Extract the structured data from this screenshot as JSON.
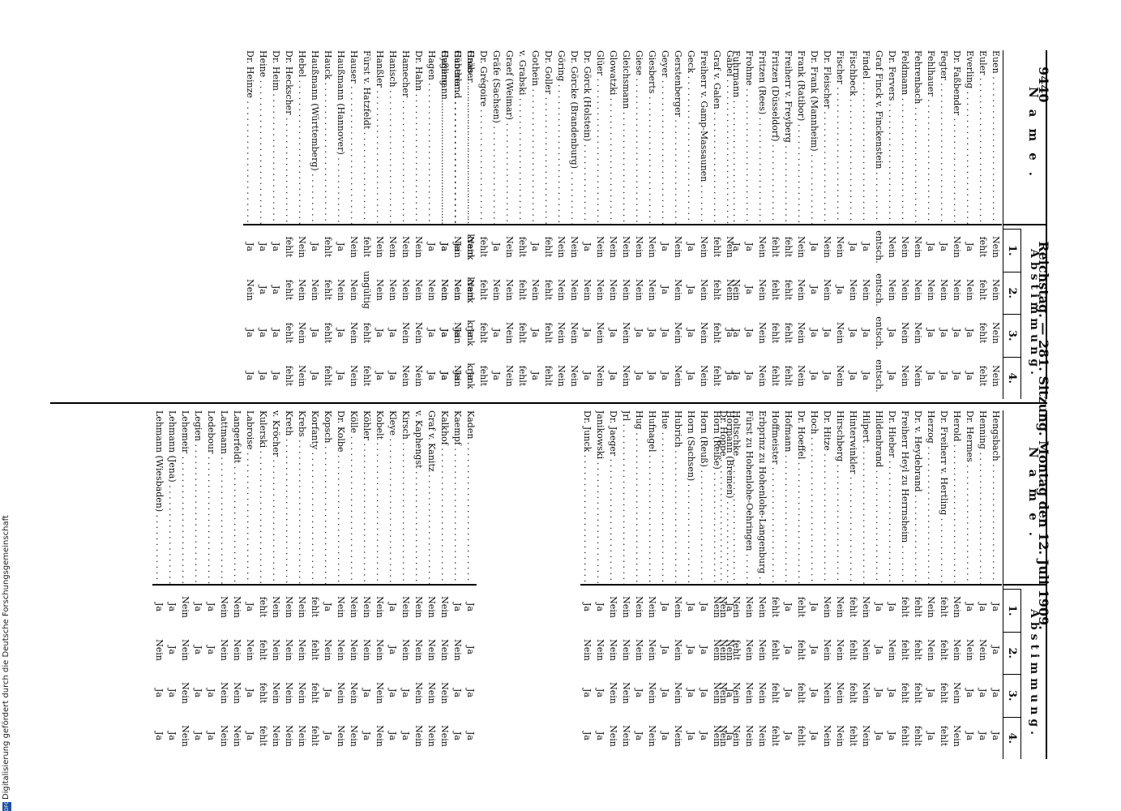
{
  "header": {
    "page_number": "9440",
    "title": "Reichstag. — 281. Sitzung. Montag den 12. Juli 1909."
  },
  "table_header": {
    "name_label": "Name.",
    "vote_group_label": "Abstimmung.",
    "cols": [
      "1.",
      "2.",
      "3.",
      "4."
    ]
  },
  "footer": {
    "text": "Digitalisierung gefördert durch die Deutsche Forschungsgemeinschaft",
    "logo": "DFG"
  },
  "left_table": {
    "block1": [
      {
        "name": "Euen",
        "votes": [
          "Nein",
          "Nein",
          "Nein",
          "Nein"
        ]
      },
      {
        "name": "Euler",
        "votes": [
          "fehlt",
          "fehlt",
          "fehlt",
          "fehlt"
        ]
      },
      {
        "name": "Everling",
        "votes": [
          "Ja",
          "Nein",
          "Ja",
          "Ja"
        ]
      },
      {
        "name": "Dr. Faßbender",
        "votes": [
          "Nein",
          "Nein",
          "Ja",
          "Ja"
        ]
      },
      {
        "name": "Fegter",
        "votes": [
          "Ja",
          "Nein",
          "Ja",
          "Ja"
        ]
      },
      {
        "name": "Fehlhauer",
        "votes": [
          "Ja",
          "Nein",
          "Ja",
          "Ja"
        ]
      },
      {
        "name": "Fehrenbach",
        "votes": [
          "Nein",
          "Nein",
          "Nein",
          "Nein"
        ]
      },
      {
        "name": "Feldmann",
        "votes": [
          "Nein",
          "Nein",
          "Nein",
          "Nein"
        ]
      },
      {
        "name": "Dr. Fervers",
        "votes": [
          "Nein",
          "Nein",
          "Ja",
          "Ja"
        ]
      },
      {
        "name": "Graf Finck v. Finckenstein",
        "votes": [
          "entsch.",
          "entsch.",
          "entsch.",
          "entsch."
        ]
      },
      {
        "name": "Findel",
        "votes": [
          "Ja",
          "Nein",
          "Ja",
          "Ja"
        ]
      },
      {
        "name": "Fischbeck",
        "votes": [
          "Ja",
          "Nein",
          "Ja",
          "Ja"
        ]
      },
      {
        "name": "Fischer",
        "votes": [
          "Nein",
          "Ja",
          "Nein",
          "Nein"
        ]
      },
      {
        "name": "Dr. Fleischer",
        "votes": [
          "Nein",
          "Nein",
          "Ja",
          "Ja"
        ]
      },
      {
        "name": "Dr. Frank (Mannheim)",
        "votes": [
          "Ja",
          "Ja",
          "Ja",
          "Ja"
        ]
      },
      {
        "name": "Frank (Ratibor)",
        "votes": [
          "Nein",
          "Nein",
          "Nein",
          "Nein"
        ]
      },
      {
        "name": "Freiherr v. Freyberg",
        "votes": [
          "fehlt",
          "fehlt",
          "fehlt",
          "fehlt"
        ]
      },
      {
        "name": "Fritzen (Düsseldorf)",
        "votes": [
          "fehlt",
          "fehlt",
          "fehlt",
          "fehlt"
        ]
      },
      {
        "name": "Fritzen (Rees)",
        "votes": [
          "Nein",
          "Nein",
          "Nein",
          "Nein"
        ]
      },
      {
        "name": "Frohme",
        "votes": [
          "Ja",
          "Ja",
          "Ja",
          "Ja"
        ]
      },
      {
        "name": "Fuhrmann",
        "votes": [
          "Ja",
          "Nein",
          "Ja",
          "Ja"
        ]
      }
    ],
    "block2": [
      {
        "name": "Gäbel",
        "votes": [
          "Nein",
          "Nein",
          "Ja",
          "Ja"
        ]
      },
      {
        "name": "Graf v. Galen",
        "votes": [
          "fehlt",
          "fehlt",
          "fehlt",
          "fehlt"
        ]
      },
      {
        "name": "Freiherr v. Gamp-Massaunen",
        "votes": [
          "Nein",
          "Nein",
          "Nein",
          "Nein"
        ]
      },
      {
        "name": "Geck",
        "votes": [
          "Ja",
          "Ja",
          "Ja",
          "Ja"
        ]
      },
      {
        "name": "Gerstenberger",
        "votes": [
          "Nein",
          "Nein",
          "Nein",
          "Nein"
        ]
      },
      {
        "name": "Geyer",
        "votes": [
          "Ja",
          "Ja",
          "Ja",
          "Ja"
        ]
      },
      {
        "name": "Giesberts",
        "votes": [
          "Nein",
          "Nein",
          "Ja",
          "Ja"
        ]
      },
      {
        "name": "Giese",
        "votes": [
          "Nein",
          "Nein",
          "Ja",
          "Ja"
        ]
      },
      {
        "name": "Gleichsmann",
        "votes": [
          "Nein",
          "Nein",
          "Nein",
          "Nein"
        ]
      },
      {
        "name": "Glowatzki",
        "votes": [
          "Nein",
          "Nein",
          "Ja",
          "Ja"
        ]
      },
      {
        "name": "Glüer",
        "votes": [
          "Nein",
          "Nein",
          "Nein",
          "Nein"
        ]
      },
      {
        "name": "Dr. Görck (Holstein)",
        "votes": [
          "Ja",
          "Nein",
          "Ja",
          "Ja"
        ]
      },
      {
        "name": "Dr. Görcke (Brandenburg)",
        "votes": [
          "Nein",
          "Nein",
          "Nein",
          "Nein"
        ]
      },
      {
        "name": "Göring",
        "votes": [
          "Nein",
          "Nein",
          "Nein",
          "Nein"
        ]
      },
      {
        "name": "Dr. Goller",
        "votes": [
          "fehlt",
          "fehlt",
          "fehlt",
          "fehlt"
        ]
      },
      {
        "name": "Gothein",
        "votes": [
          "Ja",
          "Nein",
          "Ja",
          "Ja"
        ]
      },
      {
        "name": "v. Grabski",
        "votes": [
          "fehlt",
          "fehlt",
          "fehlt",
          "fehlt"
        ]
      },
      {
        "name": "Graef (Weimar)",
        "votes": [
          "Nein",
          "Nein",
          "Nein",
          "Nein"
        ]
      },
      {
        "name": "Gräfe (Sachsen)",
        "votes": [
          "Ja",
          "Nein",
          "Ja",
          "Ja"
        ]
      },
      {
        "name": "Dr. Grégoire",
        "votes": [
          "fehlt",
          "fehlt",
          "fehlt",
          "fehlt"
        ]
      },
      {
        "name": "Gröber",
        "votes": [
          "Nein",
          "Nein",
          "Ja",
          "Ja"
        ]
      },
      {
        "name": "Günther",
        "votes": [
          "Ja",
          "Nein",
          "Ja",
          "Ja"
        ]
      },
      {
        "name": "Gyßling",
        "votes": [
          "Ja",
          "Nein",
          "Ja",
          "Ja"
        ]
      }
    ],
    "block3": [
      {
        "name": "Haas",
        "votes": [
          "krank",
          "krank",
          "krank",
          "krank"
        ]
      },
      {
        "name": "Haberland",
        "votes": [
          "Nein",
          "Nein",
          "Nein",
          "Nein"
        ]
      },
      {
        "name": "Hagemann",
        "votes": [
          "Ja",
          "Nein",
          "Ja",
          "Ja"
        ]
      },
      {
        "name": "Hagen",
        "votes": [
          "Ja",
          "Nein",
          "Ja",
          "Ja"
        ]
      },
      {
        "name": "Dr. Hahn",
        "votes": [
          "Nein",
          "Nein",
          "Nein",
          "Nein"
        ]
      },
      {
        "name": "Hamecher",
        "votes": [
          "Nein",
          "Nein",
          "Nein",
          "Nein"
        ]
      },
      {
        "name": "Hanisch",
        "votes": [
          "Nein",
          "Nein",
          "Ja",
          "Ja"
        ]
      },
      {
        "name": "Hanßler",
        "votes": [
          "Nein",
          "Nein",
          "Ja",
          "Ja"
        ]
      },
      {
        "name": "Fürst v. Hatzfeldt",
        "votes": [
          "fehlt",
          "ungültig",
          "fehlt",
          "fehlt"
        ]
      },
      {
        "name": "Hauser",
        "votes": [
          "Nein",
          "Nein",
          "Nein",
          "Nein"
        ]
      },
      {
        "name": "Haußmann (Hannover)",
        "votes": [
          "Ja",
          "Nein",
          "Ja",
          "Ja"
        ]
      },
      {
        "name": "Hauck",
        "votes": [
          "fehlt",
          "fehlt",
          "fehlt",
          "fehlt"
        ]
      },
      {
        "name": "Haußmann (Württemberg)",
        "votes": [
          "Ja",
          "Nein",
          "Ja",
          "Ja"
        ]
      },
      {
        "name": "Hebel",
        "votes": [
          "Nein",
          "Nein",
          "Nein",
          "Nein"
        ]
      },
      {
        "name": "Dr. Heckscher",
        "votes": [
          "fehlt",
          "fehlt",
          "fehlt",
          "fehlt"
        ]
      },
      {
        "name": "Dr. Heim",
        "votes": [
          "Ja",
          "Ja",
          "Ja",
          "Ja"
        ]
      },
      {
        "name": "Heine",
        "votes": [
          "Ja",
          "Ja",
          "Ja",
          "Ja"
        ]
      },
      {
        "name": "Dr. Heinze",
        "votes": [
          "Ja",
          "Nein",
          "Ja",
          "Ja"
        ]
      }
    ]
  },
  "right_table": {
    "block1": [
      {
        "name": "Hengsbach",
        "votes": [
          "Ja",
          "Ja",
          "Ja",
          "Ja"
        ]
      },
      {
        "name": "Henning",
        "votes": [
          "Ja",
          "Nein",
          "Ja",
          "Ja"
        ]
      },
      {
        "name": "Dr. Hermes",
        "votes": [
          "Ja",
          "Nein",
          "Ja",
          "Ja"
        ]
      },
      {
        "name": "Herold",
        "votes": [
          "Nein",
          "Nein",
          "Nein",
          "Nein"
        ]
      },
      {
        "name": "Dr. Freiherr v. Hertling",
        "votes": [
          "fehlt",
          "fehlt",
          "fehlt",
          "fehlt"
        ]
      },
      {
        "name": "Herzog",
        "votes": [
          "Nein",
          "Nein",
          "Ja",
          "Ja"
        ]
      },
      {
        "name": "Dr. v. Heydebrand",
        "votes": [
          "fehlt",
          "fehlt",
          "fehlt",
          "fehlt"
        ]
      },
      {
        "name": "Freiherr Heyl zu Herrnsheim",
        "votes": [
          "fehlt",
          "fehlt",
          "fehlt",
          "fehlt"
        ]
      },
      {
        "name": "Dr. Hieber",
        "votes": [
          "Ja",
          "Nein",
          "Ja",
          "Ja"
        ]
      },
      {
        "name": "Hildenbrand",
        "votes": [
          "Ja",
          "Ja",
          "Ja",
          "Ja"
        ]
      },
      {
        "name": "Hilpert",
        "votes": [
          "Nein",
          "Nein",
          "Nein",
          "Nein"
        ]
      },
      {
        "name": "Hinterwinkler",
        "votes": [
          "fehlt",
          "fehlt",
          "fehlt",
          "fehlt"
        ]
      },
      {
        "name": "Hirschberg",
        "votes": [
          "Nein",
          "Nein",
          "Nein",
          "Nein"
        ]
      },
      {
        "name": "Dr. Hitze",
        "votes": [
          "Nein",
          "Nein",
          "Nein",
          "Nein"
        ]
      },
      {
        "name": "Hoch",
        "votes": [
          "Ja",
          "Ja",
          "Ja",
          "Ja"
        ]
      },
      {
        "name": "Dr. Hoeffel",
        "votes": [
          "fehlt",
          "fehlt",
          "fehlt",
          "fehlt"
        ]
      },
      {
        "name": "Hofmann",
        "votes": [
          "Ja",
          "Ja",
          "Ja",
          "Ja"
        ]
      },
      {
        "name": "Hoffmeister",
        "votes": [
          "fehlt",
          "fehlt",
          "fehlt",
          "fehlt"
        ]
      },
      {
        "name": "Erbprinz zu Hohenlohe-Langenburg",
        "votes": [
          "Nein",
          "Nein",
          "Nein",
          "Nein"
        ]
      },
      {
        "name": "Fürst zu Hohenlohe-Oehringen",
        "votes": [
          "Nein",
          "Nein",
          "Nein",
          "Nein"
        ]
      },
      {
        "name": "Holtschke",
        "votes": [
          "Nein",
          "fehlt",
          "Nein",
          "Nein"
        ]
      },
      {
        "name": "Dr. Hoppe",
        "votes": [
          "Nein",
          "Nein",
          "Nein",
          "Nein"
        ]
      }
    ],
    "block2": [
      {
        "name": "Hormann (Bremen)",
        "votes": [
          "Ja",
          "Nein",
          "Ja",
          "Ja"
        ]
      },
      {
        "name": "Horn (Reiße)",
        "votes": [
          "Nein",
          "Nein",
          "Nein",
          "Nein"
        ]
      },
      {
        "name": "Horn (Reuß)",
        "votes": [
          "Ja",
          "Ja",
          "Ja",
          "Ja"
        ]
      },
      {
        "name": "Horn (Sachsen)",
        "votes": [
          "Ja",
          "Ja",
          "Ja",
          "Ja"
        ]
      },
      {
        "name": "Hubrich",
        "votes": [
          "Nein",
          "Nein",
          "Nein",
          "Nein"
        ]
      },
      {
        "name": "Hue",
        "votes": [
          "Ja",
          "Ja",
          "Ja",
          "Ja"
        ]
      },
      {
        "name": "Hufnagel",
        "votes": [
          "Nein",
          "Nein",
          "Nein",
          "Nein"
        ]
      },
      {
        "name": "Hug",
        "votes": [
          "Nein",
          "Nein",
          "Ja",
          "Ja"
        ]
      },
      {
        "name": "Jrl",
        "votes": [
          "Nein",
          "Nein",
          "Nein",
          "Nein"
        ]
      },
      {
        "name": "Dr. Jaeger",
        "votes": [
          "Nein",
          "Nein",
          "Nein",
          "Nein"
        ]
      },
      {
        "name": "Janikowski",
        "votes": [
          "Ja",
          "Nein",
          "Ja",
          "Ja"
        ]
      },
      {
        "name": "Dr. Junck",
        "votes": [
          "Ja",
          "Nein",
          "Ja",
          "Ja"
        ]
      }
    ],
    "block3": [
      {
        "name": "Kaden",
        "votes": [
          "Ja",
          "Ja",
          "Ja",
          "Ja"
        ]
      },
      {
        "name": "Kaempf",
        "votes": [
          "Ja",
          "Nein",
          "Ja",
          "Ja"
        ]
      },
      {
        "name": "Kalkhof",
        "votes": [
          "Nein",
          "Nein",
          "Nein",
          "Nein"
        ]
      },
      {
        "name": "Graf v. Kanitz",
        "votes": [
          "Nein",
          "Nein",
          "Nein",
          "Nein"
        ]
      },
      {
        "name": "v. Kaphengst",
        "votes": [
          "Nein",
          "Nein",
          "Nein",
          "Nein"
        ]
      },
      {
        "name": "Kirsch",
        "votes": [
          "Nein",
          "Nein",
          "Ja",
          "Ja"
        ]
      },
      {
        "name": "Kleye",
        "votes": [
          "Ja",
          "Ja",
          "Ja",
          "Ja"
        ]
      },
      {
        "name": "Kobelt",
        "votes": [
          "Nein",
          "Nein",
          "Nein",
          "Nein"
        ]
      },
      {
        "name": "Köhler",
        "votes": [
          "Nein",
          "Nein",
          "Ja",
          "Ja"
        ]
      },
      {
        "name": "Kölle",
        "votes": [
          "Nein",
          "Nein",
          "Nein",
          "Nein"
        ]
      },
      {
        "name": "Dr. Kolbe",
        "votes": [
          "Nein",
          "Nein",
          "Nein",
          "Nein"
        ]
      },
      {
        "name": "Kopsch",
        "votes": [
          "Ja",
          "Nein",
          "Ja",
          "Ja"
        ]
      },
      {
        "name": "Korfanty",
        "votes": [
          "fehlt",
          "fehlt",
          "fehlt",
          "fehlt"
        ]
      },
      {
        "name": "Krebs",
        "votes": [
          "Nein",
          "Nein",
          "Nein",
          "Nein"
        ]
      },
      {
        "name": "Kreth",
        "votes": [
          "Nein",
          "Nein",
          "Nein",
          "Nein"
        ]
      },
      {
        "name": "v. Kröcher",
        "votes": [
          "Nein",
          "Nein",
          "Nein",
          "Nein"
        ]
      },
      {
        "name": "Kulerski",
        "votes": [
          "fehlt",
          "fehlt",
          "fehlt",
          "fehlt"
        ]
      },
      {
        "name": "Labroise",
        "votes": [
          "Ja",
          "Nein",
          "Ja",
          "Ja"
        ]
      },
      {
        "name": "Langerfeldt",
        "votes": [
          "Nein",
          "Nein",
          "Nein",
          "Nein"
        ]
      },
      {
        "name": "Lattmann",
        "votes": [
          "Nein",
          "Nein",
          "Nein",
          "Nein"
        ]
      },
      {
        "name": "Ledebour",
        "votes": [
          "Ja",
          "Ja",
          "Ja",
          "Ja"
        ]
      },
      {
        "name": "Legien",
        "votes": [
          "Ja",
          "Ja",
          "Ja",
          "Ja"
        ]
      },
      {
        "name": "Lehemeir",
        "votes": [
          "Nein",
          "Nein",
          "Nein",
          "Nein"
        ]
      },
      {
        "name": "Lehmann (Jena)",
        "votes": [
          "Ja",
          "Ja",
          "Ja",
          "Ja"
        ]
      },
      {
        "name": "Lehmann (Wiesbaden)",
        "votes": [
          "Ja",
          "Nein",
          "Ja",
          "Ja"
        ]
      }
    ]
  }
}
